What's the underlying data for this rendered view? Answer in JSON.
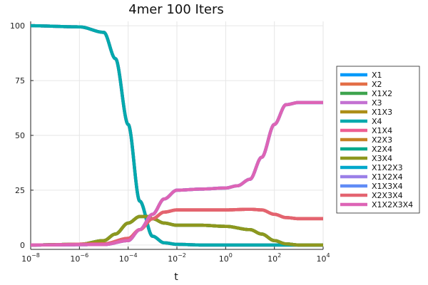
{
  "chart_data": {
    "type": "line",
    "title": "4mer 100 Iters",
    "xlabel": "t",
    "ylabel": "",
    "xscale": "log",
    "xlim": [
      1e-08,
      10000
    ],
    "ylim": [
      -2,
      102
    ],
    "xticks": [
      {
        "value": 1e-08,
        "base": "10",
        "exp": "−8"
      },
      {
        "value": 1e-06,
        "base": "10",
        "exp": "−6"
      },
      {
        "value": 0.0001,
        "base": "10",
        "exp": "−4"
      },
      {
        "value": 0.01,
        "base": "10",
        "exp": "−2"
      },
      {
        "value": 1,
        "base": "10",
        "exp": "0"
      },
      {
        "value": 100,
        "base": "10",
        "exp": "2"
      },
      {
        "value": 10000,
        "base": "10",
        "exp": "4"
      }
    ],
    "yticks": [
      "0",
      "25",
      "50",
      "75",
      "100"
    ],
    "grid": true,
    "legend_position": "right",
    "series": [
      {
        "name": "X1",
        "color": "#009AFA",
        "points": [
          [
            1e-08,
            100
          ],
          [
            1e-06,
            99.5
          ],
          [
            1e-05,
            97
          ],
          [
            3e-05,
            85
          ],
          [
            0.0001,
            55
          ],
          [
            0.0003,
            20
          ],
          [
            0.001,
            4
          ],
          [
            0.003,
            1
          ],
          [
            0.01,
            0.3
          ],
          [
            0.1,
            0
          ],
          [
            10000,
            0
          ]
        ]
      },
      {
        "name": "X2",
        "color": "#E36F47",
        "points": [
          [
            1e-08,
            100
          ],
          [
            1e-06,
            99.5
          ],
          [
            1e-05,
            97
          ],
          [
            3e-05,
            85
          ],
          [
            0.0001,
            55
          ],
          [
            0.0003,
            20
          ],
          [
            0.001,
            4
          ],
          [
            0.003,
            1
          ],
          [
            0.01,
            0.3
          ],
          [
            0.1,
            0
          ],
          [
            10000,
            0
          ]
        ]
      },
      {
        "name": "X1X2",
        "color": "#3EA44E",
        "points": [
          [
            1e-08,
            0
          ],
          [
            1e-06,
            0.3
          ],
          [
            1e-05,
            2
          ],
          [
            3e-05,
            5
          ],
          [
            0.0001,
            10
          ],
          [
            0.0003,
            13
          ],
          [
            0.0006,
            13
          ],
          [
            0.001,
            12
          ],
          [
            0.003,
            10
          ],
          [
            0.01,
            9
          ],
          [
            0.1,
            9
          ],
          [
            1,
            8.5
          ],
          [
            10,
            7
          ],
          [
            30,
            5
          ],
          [
            100,
            2
          ],
          [
            300,
            0.5
          ],
          [
            1000,
            0
          ],
          [
            10000,
            0
          ]
        ]
      },
      {
        "name": "X3",
        "color": "#C371D2",
        "points": [
          [
            1e-08,
            100
          ],
          [
            1e-06,
            99.5
          ],
          [
            1e-05,
            97
          ],
          [
            3e-05,
            85
          ],
          [
            0.0001,
            55
          ],
          [
            0.0003,
            20
          ],
          [
            0.001,
            4
          ],
          [
            0.003,
            1
          ],
          [
            0.01,
            0.3
          ],
          [
            0.1,
            0
          ],
          [
            10000,
            0
          ]
        ]
      },
      {
        "name": "X1X3",
        "color": "#AC8E18",
        "points": [
          [
            1e-08,
            0
          ],
          [
            1e-06,
            0.3
          ],
          [
            1e-05,
            2
          ],
          [
            3e-05,
            5
          ],
          [
            0.0001,
            10
          ],
          [
            0.0003,
            13
          ],
          [
            0.0006,
            13
          ],
          [
            0.001,
            12
          ],
          [
            0.003,
            10
          ],
          [
            0.01,
            9
          ],
          [
            0.1,
            9
          ],
          [
            1,
            8.5
          ],
          [
            10,
            7
          ],
          [
            30,
            5
          ],
          [
            100,
            2
          ],
          [
            300,
            0.5
          ],
          [
            1000,
            0
          ],
          [
            10000,
            0
          ]
        ]
      },
      {
        "name": "X4",
        "color": "#00A9AD",
        "points": [
          [
            1e-08,
            100
          ],
          [
            1e-06,
            99.5
          ],
          [
            1e-05,
            97
          ],
          [
            3e-05,
            85
          ],
          [
            0.0001,
            55
          ],
          [
            0.0003,
            20
          ],
          [
            0.001,
            4
          ],
          [
            0.003,
            1
          ],
          [
            0.01,
            0.3
          ],
          [
            0.1,
            0
          ],
          [
            10000,
            0
          ]
        ]
      },
      {
        "name": "X1X4",
        "color": "#ED5E93",
        "points": [
          [
            1e-08,
            0
          ],
          [
            1e-05,
            0.5
          ],
          [
            0.0001,
            3
          ],
          [
            0.0003,
            7
          ],
          [
            0.001,
            12
          ],
          [
            0.003,
            15
          ],
          [
            0.01,
            16
          ],
          [
            0.1,
            16
          ],
          [
            1,
            16
          ],
          [
            10,
            16.3
          ],
          [
            30,
            16
          ],
          [
            100,
            14
          ],
          [
            300,
            12.5
          ],
          [
            1000,
            12
          ],
          [
            10000,
            12
          ]
        ]
      },
      {
        "name": "X2X3",
        "color": "#C68225",
        "points": [
          [
            1e-08,
            0
          ],
          [
            1e-05,
            0.5
          ],
          [
            0.0001,
            3
          ],
          [
            0.0003,
            7
          ],
          [
            0.001,
            12
          ],
          [
            0.003,
            15
          ],
          [
            0.01,
            16
          ],
          [
            0.1,
            16
          ],
          [
            1,
            16
          ],
          [
            10,
            16.3
          ],
          [
            30,
            16
          ],
          [
            100,
            14
          ],
          [
            300,
            12.5
          ],
          [
            1000,
            12
          ],
          [
            10000,
            12
          ]
        ]
      },
      {
        "name": "X2X4",
        "color": "#00A98D",
        "points": [
          [
            1e-08,
            0
          ],
          [
            1e-06,
            0.3
          ],
          [
            1e-05,
            2
          ],
          [
            3e-05,
            5
          ],
          [
            0.0001,
            10
          ],
          [
            0.0003,
            13
          ],
          [
            0.0006,
            13
          ],
          [
            0.001,
            12
          ],
          [
            0.003,
            10
          ],
          [
            0.01,
            9
          ],
          [
            0.1,
            9
          ],
          [
            1,
            8.5
          ],
          [
            10,
            7
          ],
          [
            30,
            5
          ],
          [
            100,
            2
          ],
          [
            300,
            0.5
          ],
          [
            1000,
            0
          ],
          [
            10000,
            0
          ]
        ]
      },
      {
        "name": "X3X4",
        "color": "#8E971E",
        "points": [
          [
            1e-08,
            0
          ],
          [
            1e-06,
            0.3
          ],
          [
            1e-05,
            2
          ],
          [
            3e-05,
            5
          ],
          [
            0.0001,
            10
          ],
          [
            0.0003,
            13
          ],
          [
            0.0006,
            13
          ],
          [
            0.001,
            12
          ],
          [
            0.003,
            10
          ],
          [
            0.01,
            9
          ],
          [
            0.1,
            9
          ],
          [
            1,
            8.5
          ],
          [
            10,
            7
          ],
          [
            30,
            5
          ],
          [
            100,
            2
          ],
          [
            300,
            0.5
          ],
          [
            1000,
            0
          ],
          [
            10000,
            0
          ]
        ]
      },
      {
        "name": "X1X2X3",
        "color": "#00A8CB",
        "points": [
          [
            1e-08,
            0
          ],
          [
            1e-05,
            0.2
          ],
          [
            0.0001,
            2
          ],
          [
            0.0003,
            7
          ],
          [
            0.001,
            14
          ],
          [
            0.003,
            21
          ],
          [
            0.01,
            25
          ],
          [
            0.1,
            25.5
          ],
          [
            1,
            26
          ],
          [
            3,
            27
          ],
          [
            10,
            30
          ],
          [
            30,
            40
          ],
          [
            100,
            55
          ],
          [
            300,
            64
          ],
          [
            1000,
            65
          ],
          [
            10000,
            65
          ]
        ]
      },
      {
        "name": "X1X2X4",
        "color": "#9B7FE8",
        "points": [
          [
            1e-08,
            0
          ],
          [
            1e-05,
            0.2
          ],
          [
            0.0001,
            2
          ],
          [
            0.0003,
            7
          ],
          [
            0.001,
            14
          ],
          [
            0.003,
            21
          ],
          [
            0.01,
            25
          ],
          [
            0.1,
            25.5
          ],
          [
            1,
            26
          ],
          [
            3,
            27
          ],
          [
            10,
            30
          ],
          [
            30,
            40
          ],
          [
            100,
            55
          ],
          [
            300,
            64
          ],
          [
            1000,
            65
          ],
          [
            10000,
            65
          ]
        ]
      },
      {
        "name": "X1X3X4",
        "color": "#608CF6",
        "points": [
          [
            1e-08,
            0
          ],
          [
            1e-05,
            0.2
          ],
          [
            0.0001,
            2
          ],
          [
            0.0003,
            7
          ],
          [
            0.001,
            14
          ],
          [
            0.003,
            21
          ],
          [
            0.01,
            25
          ],
          [
            0.1,
            25.5
          ],
          [
            1,
            26
          ],
          [
            3,
            27
          ],
          [
            10,
            30
          ],
          [
            30,
            40
          ],
          [
            100,
            55
          ],
          [
            300,
            64
          ],
          [
            1000,
            65
          ],
          [
            10000,
            65
          ]
        ]
      },
      {
        "name": "X2X3X4",
        "color": "#E46370",
        "points": [
          [
            1e-08,
            0
          ],
          [
            1e-05,
            0.5
          ],
          [
            0.0001,
            3
          ],
          [
            0.0003,
            7
          ],
          [
            0.001,
            12
          ],
          [
            0.003,
            15
          ],
          [
            0.01,
            16
          ],
          [
            0.1,
            16
          ],
          [
            1,
            16
          ],
          [
            10,
            16.3
          ],
          [
            30,
            16
          ],
          [
            100,
            14
          ],
          [
            300,
            12.5
          ],
          [
            1000,
            12
          ],
          [
            10000,
            12
          ]
        ]
      },
      {
        "name": "X1X2X3X4",
        "color": "#DD64B5",
        "points": [
          [
            1e-08,
            0
          ],
          [
            1e-05,
            0.2
          ],
          [
            0.0001,
            2
          ],
          [
            0.0003,
            7
          ],
          [
            0.001,
            14
          ],
          [
            0.003,
            21
          ],
          [
            0.01,
            25
          ],
          [
            0.1,
            25.5
          ],
          [
            1,
            26
          ],
          [
            3,
            27
          ],
          [
            10,
            30
          ],
          [
            30,
            40
          ],
          [
            100,
            55
          ],
          [
            300,
            64
          ],
          [
            1000,
            65
          ],
          [
            10000,
            65
          ]
        ]
      }
    ]
  }
}
